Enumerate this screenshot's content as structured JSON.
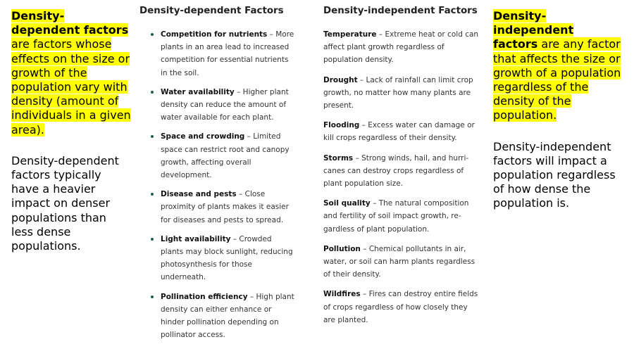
{
  "left": {
    "def_term": "Density-dependent factors",
    "def_rest": " are factors whose effects on the size or growth of the population vary with density (amount of individuals in a given area).",
    "note": "Density-dependent factors typically have a heavier impact on denser populations than less dense populations."
  },
  "dependent": {
    "title": "Density-dependent Factors",
    "items": [
      {
        "term": "Competition for nutrients",
        "desc": " – More plants in an area lead to increased competition for essential nutrients in the soil."
      },
      {
        "term": "Water availability",
        "desc": " – Higher plant density can reduce the amount of water available for each plant."
      },
      {
        "term": "Space and crowding",
        "desc": " – Limited space can restrict root and canopy growth, affecting overall development."
      },
      {
        "term": "Disease and pests",
        "desc": " – Close proximity of plants makes it easier for diseases and pests to spread."
      },
      {
        "term": "Light availability",
        "desc": " – Crowded plants may block sunlight, reducing photosynthesis for those underneath."
      },
      {
        "term": "Pollination efficiency",
        "desc": " – High plant density can either enhance or hinder pollination depending on pollinator access."
      }
    ]
  },
  "independent": {
    "title": "Density-independent Factors",
    "items": [
      {
        "term": "Temperature",
        "desc": " – Extreme heat or cold can affect plant growth regardless of population density."
      },
      {
        "term": "Drought",
        "desc": " – Lack of rainfall can limit crop growth, no matter how many plants are present."
      },
      {
        "term": "Flooding",
        "desc": " – Excess water can damage or kill crops regardless of their density."
      },
      {
        "term": "Storms",
        "desc": " – Strong winds, hail, and hurri-canes can destroy crops regardless of plant population size."
      },
      {
        "term": "Soil quality",
        "desc": " – The natural composition and fertility of soil impact growth, re-gardless of plant population."
      },
      {
        "term": "Pollution",
        "desc": " – Chemical pollutants in air, water, or soil can harm plants regardless of their density."
      },
      {
        "term": "Wildfires",
        "desc": " – Fires can destroy entire fields of crops regardless of how closely they are planted."
      }
    ]
  },
  "right": {
    "def_term": "Density-independent factors",
    "def_rest": " are any factor that affects the size or growth of a population regardless of the density of the population.",
    "note": "Density-independent factors will impact a population regardless of how dense the population is."
  }
}
